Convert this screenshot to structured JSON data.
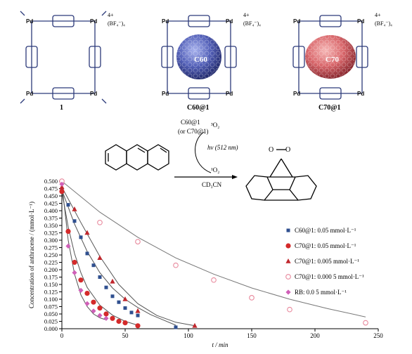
{
  "structures": {
    "items": [
      {
        "caption": "1",
        "guest": null,
        "charge": "4+",
        "counterion": "(BF₄⁻)₄"
      },
      {
        "caption": "C60@1",
        "guest": "C60",
        "charge": "4+",
        "counterion": "(BF₄⁻)₄",
        "guest_color": "#5360b8"
      },
      {
        "caption": "C70@1",
        "guest": "C70",
        "charge": "4+",
        "counterion": "(BF₄⁻)₄",
        "guest_color": "#d9676b"
      }
    ],
    "metal_label": "Pd",
    "substituents": [
      "R",
      "R'"
    ]
  },
  "reaction": {
    "catalyst": "C60@1",
    "catalyst_alt": "(or C70@1)",
    "o2_triplet": "³O₂",
    "light": "hν (512 nm)",
    "o2_singlet": "¹O₂",
    "solvent": "CD₃CN"
  },
  "chart_data": {
    "type": "scatter",
    "xlabel": "t / min",
    "ylabel": "Concentration of anthracene / (mmol·L⁻¹)",
    "xlim": [
      0,
      250
    ],
    "ylim": [
      0,
      0.5
    ],
    "xticks": [
      0,
      50,
      100,
      150,
      200,
      250
    ],
    "yticks": [
      0.0,
      0.025,
      0.05,
      0.075,
      0.1,
      0.125,
      0.15,
      0.175,
      0.2,
      0.225,
      0.25,
      0.275,
      0.3,
      0.325,
      0.35,
      0.375,
      0.4,
      0.425,
      0.45,
      0.475,
      0.5
    ],
    "series": [
      {
        "name": "C60@1: 0.05 mmol·L⁻¹",
        "marker": "square",
        "color": "#2f4f8f",
        "x": [
          0,
          5,
          10,
          15,
          20,
          25,
          30,
          35,
          40,
          45,
          50,
          55,
          60,
          90
        ],
        "y": [
          0.47,
          0.42,
          0.365,
          0.31,
          0.255,
          0.215,
          0.175,
          0.14,
          0.11,
          0.09,
          0.07,
          0.055,
          0.045,
          0.005
        ],
        "fit": [
          [
            0,
            0.47
          ],
          [
            10,
            0.355
          ],
          [
            20,
            0.262
          ],
          [
            30,
            0.19
          ],
          [
            40,
            0.138
          ],
          [
            50,
            0.1
          ],
          [
            60,
            0.072
          ],
          [
            70,
            0.048
          ],
          [
            80,
            0.03
          ],
          [
            90,
            0.012
          ]
        ]
      },
      {
        "name": "C70@1: 0.05 mmol·L⁻¹",
        "marker": "circle",
        "color": "#d42a2a",
        "x": [
          0,
          5,
          10,
          15,
          20,
          25,
          30,
          35,
          40,
          45,
          50,
          60
        ],
        "y": [
          0.465,
          0.33,
          0.225,
          0.165,
          0.12,
          0.09,
          0.07,
          0.05,
          0.035,
          0.025,
          0.02,
          0.01
        ],
        "fit": [
          [
            0,
            0.465
          ],
          [
            5,
            0.345
          ],
          [
            10,
            0.255
          ],
          [
            15,
            0.19
          ],
          [
            20,
            0.14
          ],
          [
            30,
            0.08
          ],
          [
            40,
            0.046
          ],
          [
            50,
            0.025
          ],
          [
            60,
            0.012
          ]
        ]
      },
      {
        "name": "C70@1: 0.005 mmol·L⁻¹",
        "marker": "triangle",
        "color": "#c0272d",
        "x": [
          0,
          10,
          20,
          30,
          40,
          50,
          60,
          105
        ],
        "y": [
          0.48,
          0.405,
          0.325,
          0.24,
          0.16,
          0.1,
          0.06,
          0.01
        ],
        "fit": [
          [
            0,
            0.48
          ],
          [
            15,
            0.36
          ],
          [
            30,
            0.245
          ],
          [
            45,
            0.15
          ],
          [
            60,
            0.085
          ],
          [
            75,
            0.045
          ],
          [
            90,
            0.022
          ],
          [
            105,
            0.01
          ]
        ]
      },
      {
        "name": "C70@1: 0.000 5 mmol·L⁻¹",
        "marker": "open-circle",
        "color": "#e8889c",
        "x": [
          0,
          30,
          60,
          90,
          120,
          150,
          180,
          240
        ],
        "y": [
          0.5,
          0.36,
          0.295,
          0.215,
          0.165,
          0.105,
          0.065,
          0.02
        ],
        "fit": [
          [
            0,
            0.5
          ],
          [
            30,
            0.395
          ],
          [
            60,
            0.31
          ],
          [
            90,
            0.24
          ],
          [
            120,
            0.185
          ],
          [
            150,
            0.138
          ],
          [
            180,
            0.1
          ],
          [
            210,
            0.068
          ],
          [
            240,
            0.04
          ]
        ]
      },
      {
        "name": "RB: 0.0 5 mmol·L⁻¹",
        "marker": "diamond",
        "color": "#d05fb8",
        "x": [
          0,
          5,
          10,
          15,
          20,
          25,
          30,
          35
        ],
        "y": [
          0.49,
          0.28,
          0.19,
          0.13,
          0.085,
          0.06,
          0.045,
          0.035
        ],
        "fit": [
          [
            0,
            0.49
          ],
          [
            5,
            0.3
          ],
          [
            10,
            0.185
          ],
          [
            15,
            0.115
          ],
          [
            20,
            0.075
          ],
          [
            25,
            0.05
          ],
          [
            30,
            0.037
          ],
          [
            35,
            0.03
          ]
        ]
      }
    ],
    "legend_position": "right",
    "grid": false
  }
}
